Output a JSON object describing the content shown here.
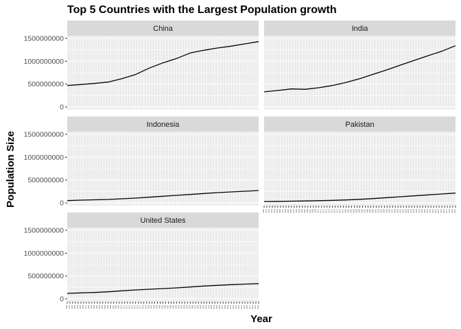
{
  "chart_data": {
    "type": "line",
    "title": "Top 5 Countries with the Largest Population growth",
    "xlabel": "Year",
    "ylabel": "Population Size",
    "facet_wrap": true,
    "ylim": [
      -60000000,
      1560000000
    ],
    "y_ticks": [
      0,
      500000000,
      1000000000,
      1500000000
    ],
    "y_tick_labels": [
      "0",
      "500000000",
      "1000000000",
      "1500000000"
    ],
    "x_range": [
      1950,
      2020
    ],
    "grid": true,
    "series_color": "#000000",
    "panel_background": "#ebebeb",
    "strip_background": "#d9d9d9",
    "series": [
      {
        "name": "China",
        "x": [
          1950,
          1955,
          1960,
          1965,
          1970,
          1975,
          1980,
          1985,
          1990,
          1995,
          2000,
          2005,
          2010,
          2015,
          2020
        ],
        "values": [
          470000000,
          490000000,
          515000000,
          545000000,
          620000000,
          710000000,
          850000000,
          965000000,
          1060000000,
          1180000000,
          1240000000,
          1290000000,
          1330000000,
          1380000000,
          1430000000
        ]
      },
      {
        "name": "India",
        "x": [
          1950,
          1955,
          1960,
          1965,
          1970,
          1975,
          1980,
          1985,
          1990,
          1995,
          2000,
          2005,
          2010,
          2015,
          2020
        ],
        "values": [
          330000000,
          360000000,
          395000000,
          385000000,
          420000000,
          470000000,
          535000000,
          620000000,
          715000000,
          815000000,
          920000000,
          1020000000,
          1120000000,
          1220000000,
          1340000000
        ]
      },
      {
        "name": "Indonesia",
        "x": [
          1950,
          1955,
          1960,
          1965,
          1970,
          1975,
          1980,
          1985,
          1990,
          1995,
          2000,
          2005,
          2010,
          2015,
          2020
        ],
        "values": [
          50000000,
          60000000,
          68000000,
          75000000,
          90000000,
          105000000,
          125000000,
          145000000,
          165000000,
          185000000,
          205000000,
          225000000,
          240000000,
          255000000,
          270000000
        ]
      },
      {
        "name": "Pakistan",
        "x": [
          1950,
          1955,
          1960,
          1965,
          1970,
          1975,
          1980,
          1985,
          1990,
          1995,
          2000,
          2005,
          2010,
          2015,
          2020
        ],
        "values": [
          30000000,
          33000000,
          37000000,
          42000000,
          48000000,
          55000000,
          65000000,
          78000000,
          95000000,
          115000000,
          135000000,
          155000000,
          175000000,
          195000000,
          215000000
        ]
      },
      {
        "name": "United States",
        "x": [
          1950,
          1955,
          1960,
          1965,
          1970,
          1975,
          1980,
          1985,
          1990,
          1995,
          2000,
          2005,
          2010,
          2015,
          2020
        ],
        "values": [
          120000000,
          130000000,
          140000000,
          155000000,
          175000000,
          195000000,
          210000000,
          225000000,
          240000000,
          260000000,
          280000000,
          295000000,
          310000000,
          322000000,
          333000000
        ]
      }
    ]
  }
}
